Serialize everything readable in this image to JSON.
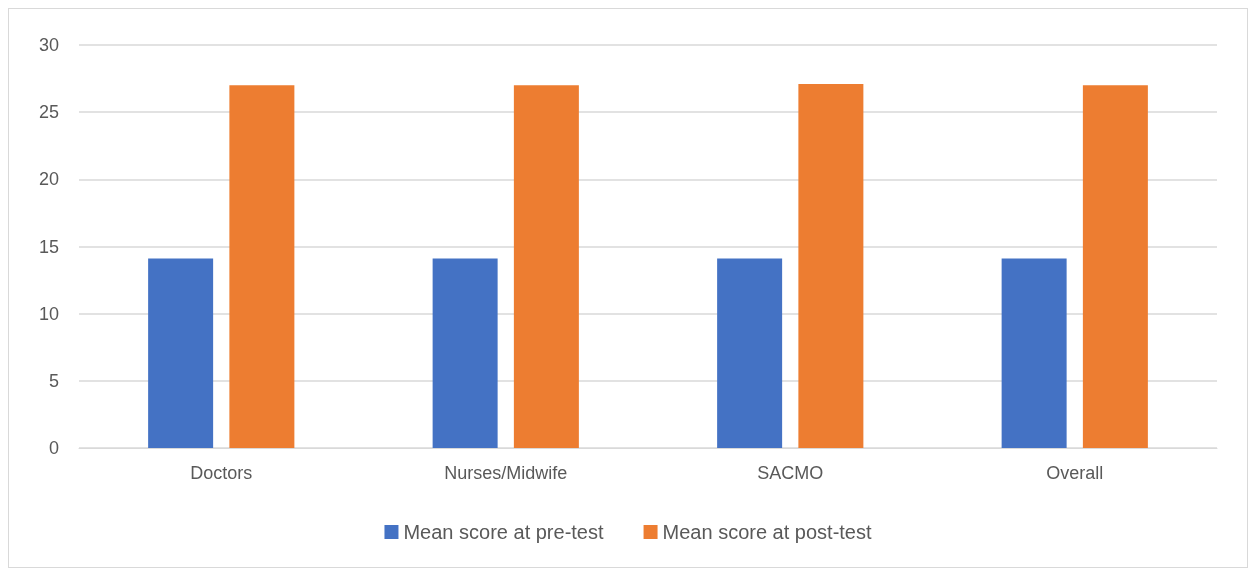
{
  "chart_data": {
    "type": "bar",
    "categories": [
      "Doctors",
      "Nurses/Midwife",
      "SACMO",
      "Overall"
    ],
    "series": [
      {
        "name": "Mean score at pre-test",
        "color": "#4472c4",
        "values": [
          14.1,
          14.1,
          14.1,
          14.1
        ]
      },
      {
        "name": "Mean score at post-test",
        "color": "#ed7d31",
        "values": [
          27.0,
          27.0,
          27.1,
          27.0
        ]
      }
    ],
    "ylim": [
      0,
      30
    ],
    "yticks": [
      0,
      5,
      10,
      15,
      20,
      25,
      30
    ],
    "grid": "y",
    "legend": "bottom"
  }
}
